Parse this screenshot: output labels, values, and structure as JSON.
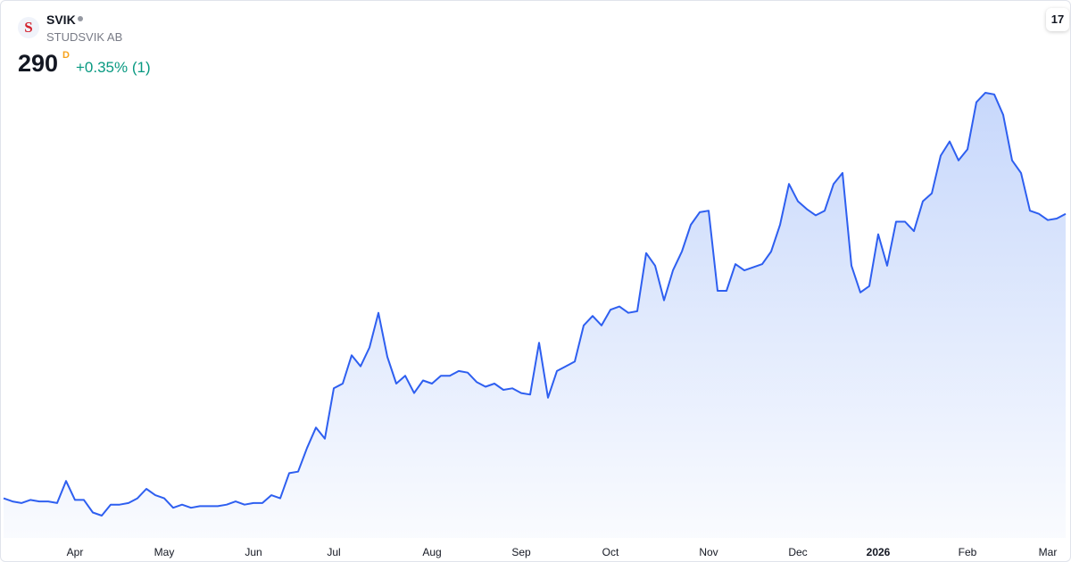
{
  "chart_data": {
    "type": "line",
    "symbol": "SVIK",
    "logo_letter": "S",
    "company": "STUDSVIK AB",
    "last_value": 290,
    "interval": "D",
    "change": "+0.35% (1)",
    "line_color": "#2e5ff0",
    "fill_color": "#8fb0f7",
    "categories": [
      null,
      null,
      null,
      null,
      null,
      null,
      null,
      null,
      "Apr",
      null,
      null,
      null,
      null,
      null,
      null,
      null,
      null,
      null,
      "May",
      null,
      null,
      null,
      null,
      null,
      null,
      null,
      null,
      null,
      "Jun",
      null,
      null,
      null,
      null,
      null,
      null,
      null,
      null,
      "Jul",
      null,
      null,
      null,
      null,
      null,
      null,
      null,
      null,
      null,
      null,
      "Aug",
      null,
      null,
      null,
      null,
      null,
      null,
      null,
      null,
      null,
      "Sep",
      null,
      null,
      null,
      null,
      null,
      null,
      null,
      null,
      null,
      "Oct",
      null,
      null,
      null,
      null,
      null,
      null,
      null,
      null,
      null,
      null,
      "Nov",
      null,
      null,
      null,
      null,
      null,
      null,
      null,
      null,
      null,
      "Dec",
      null,
      null,
      null,
      null,
      null,
      null,
      null,
      null,
      "2026",
      null,
      null,
      null,
      null,
      null,
      null,
      null,
      null,
      null,
      "Feb",
      null,
      null,
      null,
      null,
      null,
      null,
      null,
      null,
      "Mar",
      null,
      null
    ],
    "values": [
      109,
      107,
      106,
      108,
      107,
      107,
      106,
      120,
      108,
      108,
      100,
      98,
      105,
      105,
      106,
      109,
      115,
      111,
      109,
      103,
      105,
      103,
      104,
      104,
      104,
      105,
      107,
      105,
      106,
      106,
      111,
      109,
      125,
      126,
      141,
      154,
      147,
      179,
      182,
      200,
      193,
      205,
      227,
      199,
      182,
      187,
      176,
      184,
      182,
      187,
      187,
      190,
      189,
      183,
      180,
      182,
      178,
      179,
      176,
      175,
      208,
      173,
      190,
      193,
      196,
      219,
      225,
      219,
      229,
      231,
      227,
      228,
      265,
      257,
      235,
      254,
      266,
      283,
      291,
      292,
      241,
      241,
      258,
      254,
      256,
      258,
      266,
      283,
      309,
      298,
      293,
      289,
      292,
      309,
      316,
      257,
      240,
      244,
      277,
      257,
      285,
      285,
      279,
      298,
      303,
      327,
      336,
      324,
      331,
      361,
      367,
      366,
      353,
      324,
      316,
      292,
      290,
      286,
      287,
      290
    ]
  }
}
